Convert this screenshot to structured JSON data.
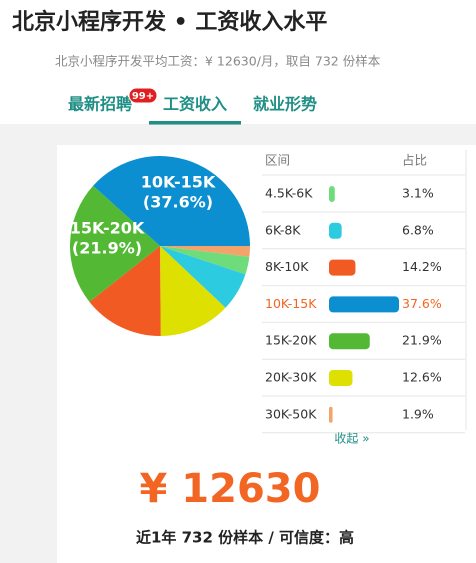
{
  "header": {
    "title": "北京小程序开发 • 工资收入水平",
    "subtitle": "北京小程序开发平均工资：¥ 12630/月，取自 732 份样本"
  },
  "tabs": [
    {
      "label": "最新招聘",
      "badge": "99+"
    },
    {
      "label": "工资收入",
      "active": true
    },
    {
      "label": "就业形势"
    }
  ],
  "chart_data": {
    "type": "pie",
    "columns": [
      "区间",
      "占比"
    ],
    "categories": [
      "4.5K-6K",
      "6K-8K",
      "8K-10K",
      "10K-15K",
      "15K-20K",
      "20K-30K",
      "30K-50K"
    ],
    "values": [
      3.1,
      6.8,
      14.2,
      37.6,
      21.9,
      12.6,
      1.9
    ],
    "value_labels": [
      "3.1%",
      "6.8%",
      "14.2%",
      "37.6%",
      "21.9%",
      "12.6%",
      "1.9%"
    ],
    "colors": [
      "#6fdc7c",
      "#2ccbe0",
      "#f15a22",
      "#0b8fd0",
      "#53b935",
      "#dde000",
      "#f4a46a"
    ],
    "highlight": 3,
    "slice_labels": {
      "3": "(37.6%)",
      "4": "(21.9%)"
    }
  },
  "collapse": "收起 »",
  "salary": "¥ 12630",
  "footer": "近1年 732 份样本 / 可信度：高"
}
